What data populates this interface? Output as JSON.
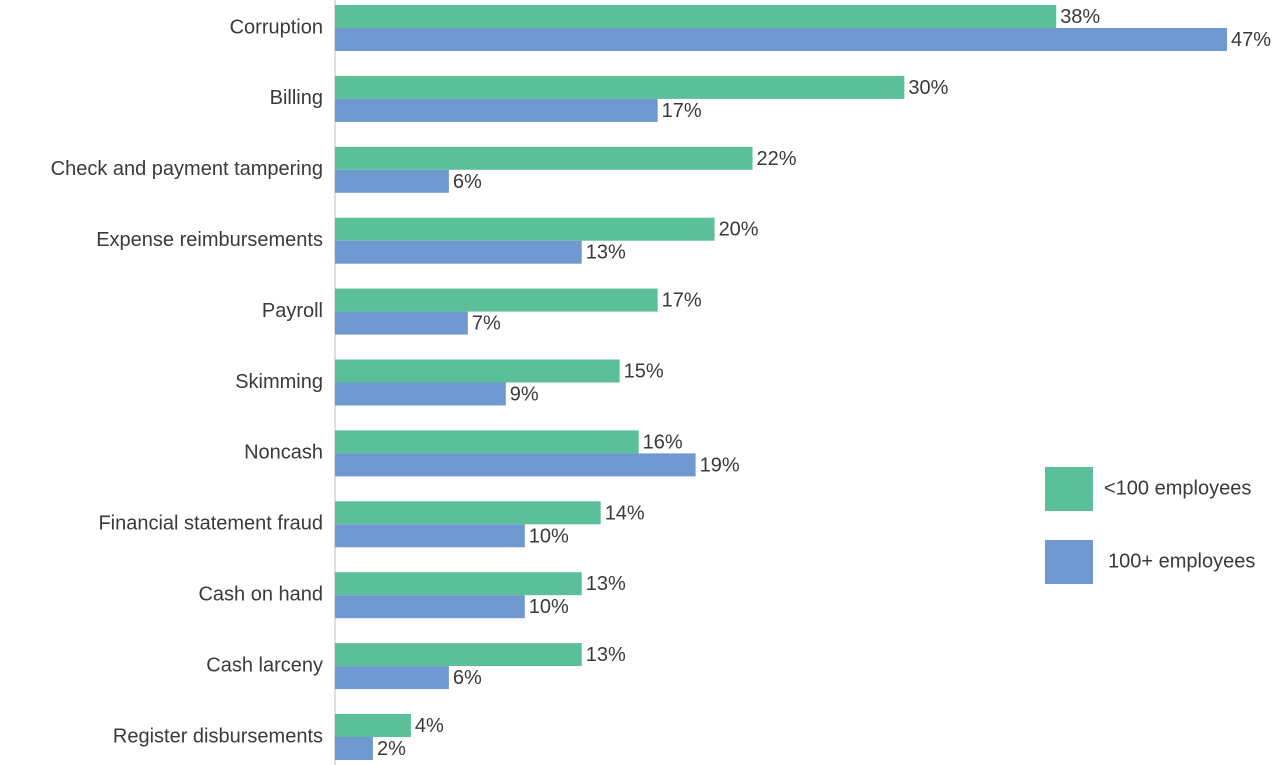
{
  "chart_data": {
    "type": "bar",
    "orientation": "horizontal",
    "categories": [
      "Corruption",
      "Billing",
      "Check and payment tampering",
      "Expense reimbursements",
      "Payroll",
      "Skimming",
      "Noncash",
      "Financial statement fraud",
      "Cash on hand",
      "Cash larceny",
      "Register disbursements"
    ],
    "series": [
      {
        "name": "<100 employees",
        "color": "#5bbf9a",
        "values": [
          38,
          30,
          22,
          20,
          17,
          15,
          16,
          14,
          13,
          13,
          4
        ],
        "labels": [
          "38%",
          "30%",
          "22%",
          "20%",
          "17%",
          "15%",
          "16%",
          "14%",
          "13%",
          "13%",
          "4%"
        ]
      },
      {
        "name": "100+ employees",
        "color": "#6e98cf",
        "values": [
          47,
          17,
          6,
          13,
          7,
          9,
          19,
          10,
          10,
          6,
          2
        ],
        "labels": [
          "47%",
          "17%",
          "6%",
          "13%",
          "7%",
          "9%",
          "19%",
          "10%",
          "10%",
          "6%",
          "2%"
        ]
      }
    ],
    "xlim": [
      0,
      47
    ],
    "grid": false,
    "legend_position": "right"
  }
}
